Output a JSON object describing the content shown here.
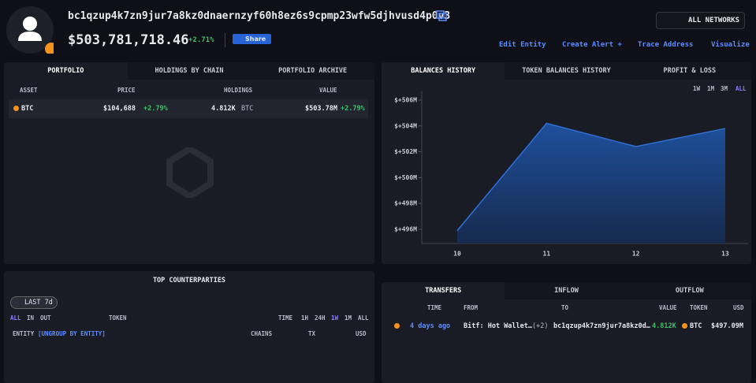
{
  "header": {
    "address": "bc1qzup4k7zn9jur7a8kz0dnaernzyf60h8ez6s9cpmp23wfw5djhvusd4p0v3",
    "balance": "$503,781,718.46",
    "change": "+2.71%",
    "share": "Share",
    "networks": "ALL NETWORKS",
    "actions": [
      "Edit Entity",
      "Create Alert +",
      "Trace Address",
      "Visualize"
    ]
  },
  "portfolio": {
    "tabs": [
      "PORTFOLIO",
      "HOLDINGS BY CHAIN",
      "PORTFOLIO ARCHIVE"
    ],
    "columns": [
      "ASSET",
      "PRICE",
      "HOLDINGS",
      "VALUE"
    ],
    "rows": [
      {
        "asset": "BTC",
        "price": "$104,688",
        "price_change": "+2.79%",
        "holdings": "4.812K",
        "holdings_unit": "BTC",
        "value": "$503.78M",
        "value_change": "+2.79%"
      }
    ]
  },
  "balances": {
    "tabs": [
      "BALANCES HISTORY",
      "TOKEN BALANCES HISTORY",
      "PROFIT & LOSS"
    ],
    "ranges": [
      "1W",
      "1M",
      "3M",
      "ALL"
    ],
    "chart_data": {
      "type": "area",
      "categories": [
        "10",
        "11",
        "12",
        "13"
      ],
      "values": [
        495.9,
        504.2,
        502.4,
        503.8
      ],
      "color": "#2f6fd6",
      "ylim": [
        494.9,
        506.7
      ],
      "yticks": [
        {
          "value": 496,
          "label": "$+496M"
        },
        {
          "value": 498,
          "label": "$+498M"
        },
        {
          "value": 500,
          "label": "$+500M"
        },
        {
          "value": 502,
          "label": "$+502M"
        },
        {
          "value": 504,
          "label": "$+504M"
        },
        {
          "value": 506,
          "label": "$+506M"
        }
      ],
      "grid": false
    }
  },
  "counterparties": {
    "title": "TOP COUNTERPARTIES",
    "filter": "LAST 7d",
    "directions": [
      "ALL",
      "IN",
      "OUT"
    ],
    "token": "TOKEN",
    "time": "TIME",
    "ranges": [
      "1H",
      "24H",
      "1W",
      "1M",
      "ALL"
    ],
    "columns": [
      "ENTITY",
      "[UNGROUP BY ENTITY]",
      "CHAINS",
      "TX",
      "USD"
    ]
  },
  "transfers": {
    "tabs": [
      "TRANSFERS",
      "INFLOW",
      "OUTFLOW"
    ],
    "columns": [
      "TIME",
      "FROM",
      "TO",
      "VALUE",
      "TOKEN",
      "USD"
    ],
    "rows": [
      {
        "time": "4 days ago",
        "from": "Bitf: Hot Wallet…",
        "from_extra": "(+2)",
        "to": "bc1qzup4k7zn9jur7a8kz0d…",
        "value": "4.812K",
        "token": "BTC",
        "usd": "$497.09M"
      }
    ]
  }
}
